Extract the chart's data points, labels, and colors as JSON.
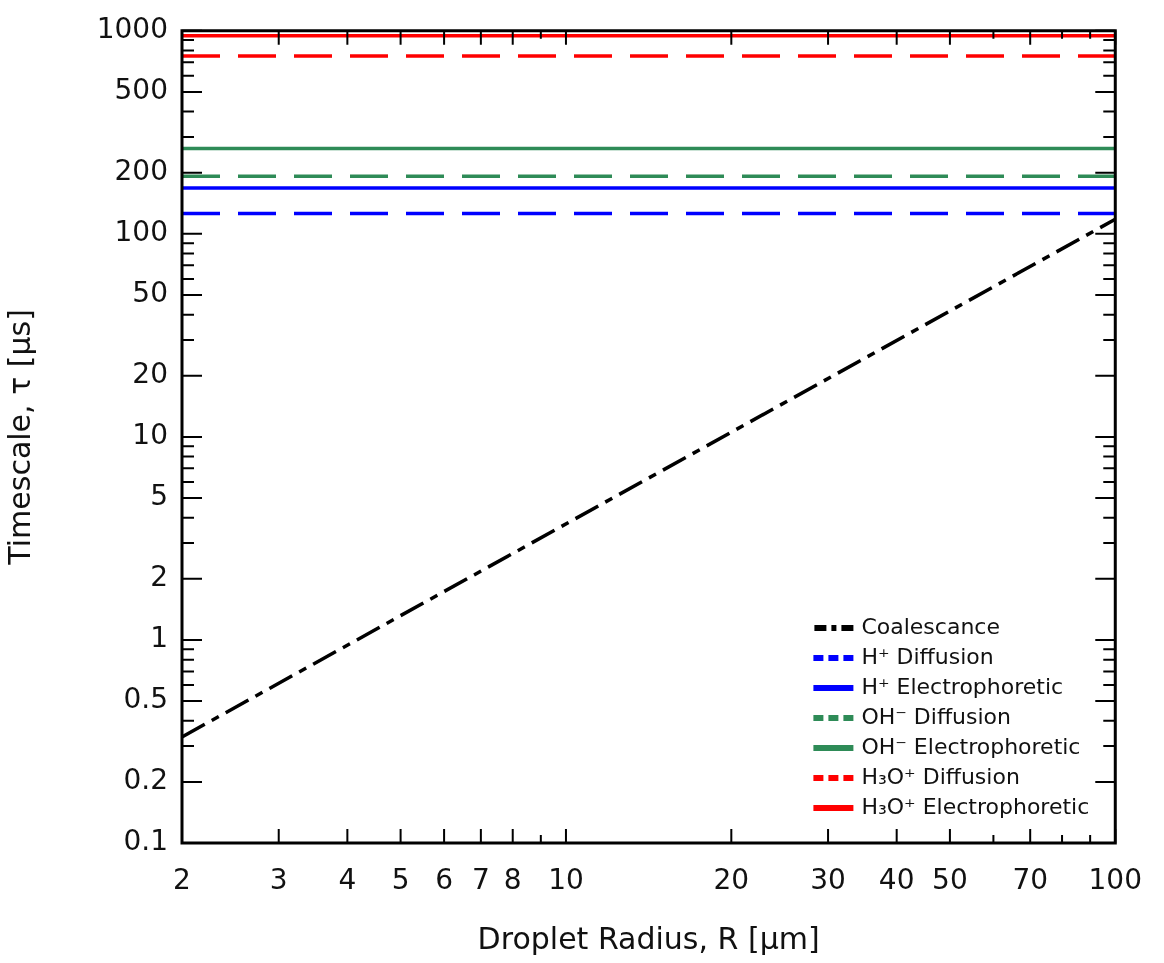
{
  "chart_data": {
    "type": "line",
    "xlabel": "Droplet Radius, R [μm]",
    "ylabel": "Timescale, τ [μs]",
    "log": "xy",
    "grid": false,
    "legend": "bottom right",
    "marker": "none",
    "xlim": [
      2,
      100
    ],
    "ylim": [
      0.1,
      1000
    ],
    "xticks": [
      2,
      3,
      4,
      5,
      6,
      7,
      8,
      {
        "value": 9,
        "label": null
      },
      10,
      20,
      30,
      40,
      50,
      {
        "value": 60,
        "label": null
      },
      70,
      {
        "value": 80,
        "label": null
      },
      {
        "value": 90,
        "label": null
      },
      100
    ],
    "yticks": [
      0.1,
      0.2,
      {
        "value": 0.3,
        "label": null
      },
      {
        "value": 0.4,
        "label": null
      },
      0.5,
      {
        "value": 0.6,
        "label": null
      },
      {
        "value": 0.7,
        "label": null
      },
      {
        "value": 0.8,
        "label": null
      },
      {
        "value": 0.9,
        "label": null
      },
      1,
      2,
      {
        "value": 3,
        "label": null
      },
      {
        "value": 4,
        "label": null
      },
      5,
      {
        "value": 6,
        "label": null
      },
      {
        "value": 7,
        "label": null
      },
      {
        "value": 8,
        "label": null
      },
      {
        "value": 9,
        "label": null
      },
      10,
      20,
      {
        "value": 30,
        "label": null
      },
      {
        "value": 40,
        "label": null
      },
      50,
      {
        "value": 60,
        "label": null
      },
      {
        "value": 70,
        "label": null
      },
      {
        "value": 80,
        "label": null
      },
      {
        "value": 90,
        "label": null
      },
      100,
      200,
      {
        "value": 300,
        "label": null
      },
      {
        "value": 400,
        "label": null
      },
      500,
      {
        "value": 600,
        "label": null
      },
      {
        "value": 700,
        "label": null
      },
      {
        "value": 800,
        "label": null
      },
      {
        "value": 900,
        "label": null
      },
      1000
    ],
    "x": [
      2,
      100
    ],
    "series": [
      {
        "name": "Coalescance",
        "color": "#000000",
        "line_style": "dashdot",
        "values": [
          0.333,
          118
        ]
      },
      {
        "name": "H⁺ Diffusion",
        "color": "#0000ff",
        "line_style": "dashed",
        "values": [
          126,
          126
        ]
      },
      {
        "name": "H⁺ Electrophoretic",
        "color": "#0000ff",
        "line_style": "solid",
        "values": [
          168,
          168
        ]
      },
      {
        "name": "OH⁻ Diffusion",
        "color": "#2e8b57",
        "line_style": "dashed",
        "values": [
          192,
          192
        ]
      },
      {
        "name": "OH⁻ Electrophoretic",
        "color": "#2e8b57",
        "line_style": "solid",
        "values": [
          263,
          263
        ]
      },
      {
        "name": "H₃O⁺ Diffusion",
        "color": "#ff0000",
        "line_style": "dashed",
        "values": [
          751,
          751
        ]
      },
      {
        "name": "H₃O⁺ Electrophoretic",
        "color": "#ff0000",
        "line_style": "solid",
        "values": [
          946,
          946
        ]
      }
    ]
  }
}
